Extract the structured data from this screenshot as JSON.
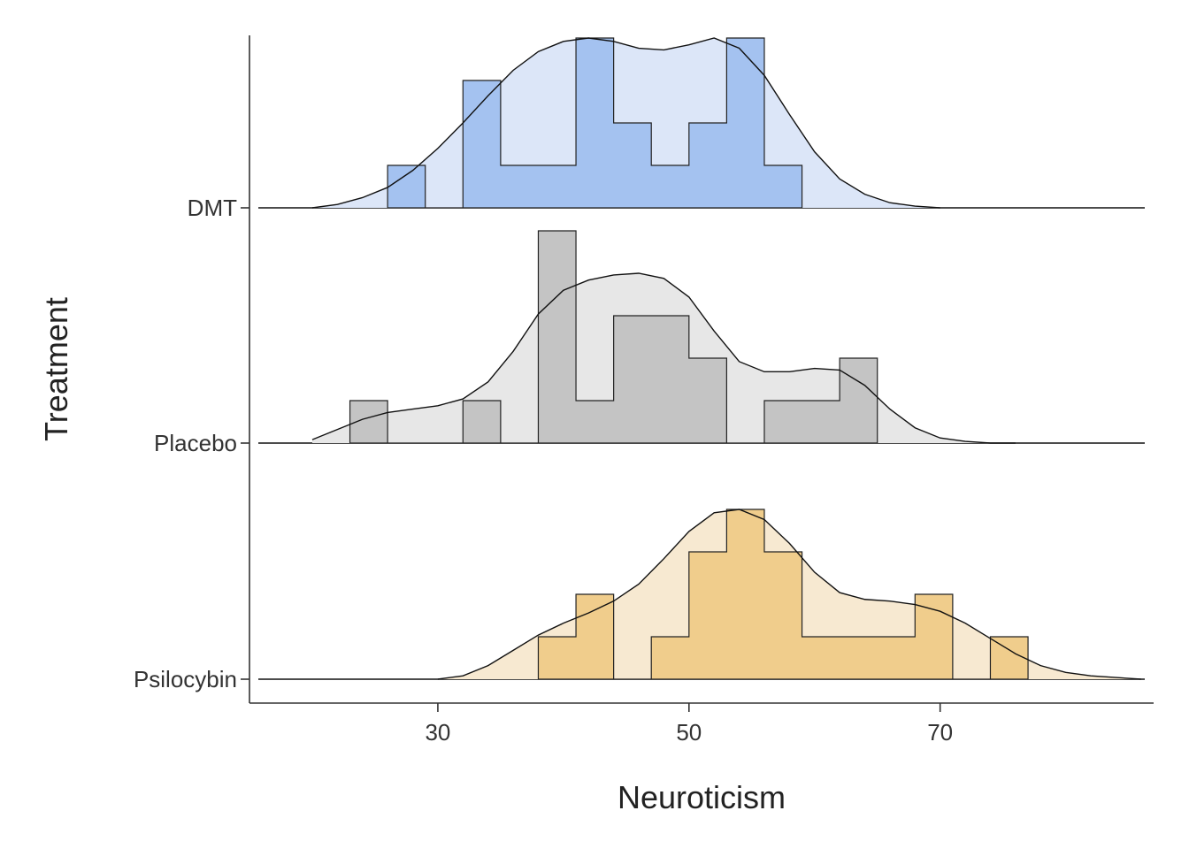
{
  "chart_data": {
    "type": "ridgeline-histogram-density",
    "xlabel": "Neuroticism",
    "ylabel": "Treatment",
    "x_ticks": [
      30,
      50,
      70
    ],
    "xlim": [
      15,
      87
    ],
    "bin_width": 3,
    "grid": false,
    "legend": "none",
    "series": [
      {
        "name": "DMT",
        "fill_hist": "#a4c2f0",
        "fill_density": "#dce6f8",
        "bins": [
          {
            "start": 26,
            "count": 1
          },
          {
            "start": 29,
            "count": 0
          },
          {
            "start": 32,
            "count": 3
          },
          {
            "start": 35,
            "count": 1
          },
          {
            "start": 38,
            "count": 1
          },
          {
            "start": 41,
            "count": 4
          },
          {
            "start": 44,
            "count": 2
          },
          {
            "start": 47,
            "count": 1
          },
          {
            "start": 50,
            "count": 2
          },
          {
            "start": 53,
            "count": 4
          },
          {
            "start": 56,
            "count": 1
          }
        ],
        "density": {
          "x": [
            20,
            22,
            24,
            26,
            28,
            30,
            32,
            34,
            36,
            38,
            40,
            42,
            44,
            46,
            48,
            50,
            52,
            54,
            56,
            58,
            60,
            62,
            64,
            66,
            68,
            70
          ],
          "y": [
            0.0,
            0.02,
            0.06,
            0.12,
            0.22,
            0.35,
            0.5,
            0.66,
            0.81,
            0.92,
            0.98,
            1.0,
            0.98,
            0.94,
            0.93,
            0.96,
            1.0,
            0.94,
            0.78,
            0.55,
            0.33,
            0.17,
            0.08,
            0.03,
            0.01,
            0.0
          ]
        }
      },
      {
        "name": "Placebo",
        "fill_hist": "#c4c4c4",
        "fill_density": "#e7e7e7",
        "bins": [
          {
            "start": 23,
            "count": 1
          },
          {
            "start": 26,
            "count": 0
          },
          {
            "start": 29,
            "count": 0
          },
          {
            "start": 32,
            "count": 1
          },
          {
            "start": 35,
            "count": 0
          },
          {
            "start": 38,
            "count": 5
          },
          {
            "start": 41,
            "count": 1
          },
          {
            "start": 44,
            "count": 3
          },
          {
            "start": 47,
            "count": 3
          },
          {
            "start": 50,
            "count": 2
          },
          {
            "start": 53,
            "count": 0
          },
          {
            "start": 56,
            "count": 1
          },
          {
            "start": 59,
            "count": 1
          },
          {
            "start": 62,
            "count": 2
          }
        ],
        "density": {
          "x": [
            20,
            22,
            24,
            26,
            28,
            30,
            32,
            34,
            36,
            38,
            40,
            42,
            44,
            46,
            48,
            50,
            52,
            54,
            56,
            58,
            60,
            62,
            64,
            66,
            68,
            70,
            72,
            74,
            76
          ],
          "y": [
            0.02,
            0.08,
            0.14,
            0.18,
            0.2,
            0.22,
            0.26,
            0.36,
            0.54,
            0.76,
            0.9,
            0.96,
            0.99,
            1.0,
            0.97,
            0.86,
            0.66,
            0.48,
            0.42,
            0.42,
            0.44,
            0.43,
            0.34,
            0.2,
            0.09,
            0.03,
            0.01,
            0.0,
            0.0
          ]
        }
      },
      {
        "name": "Psilocybin",
        "fill_hist": "#f0cd8c",
        "fill_density": "#f7e9d1",
        "bins": [
          {
            "start": 38,
            "count": 1
          },
          {
            "start": 41,
            "count": 2
          },
          {
            "start": 44,
            "count": 0
          },
          {
            "start": 47,
            "count": 1
          },
          {
            "start": 50,
            "count": 3
          },
          {
            "start": 53,
            "count": 4
          },
          {
            "start": 56,
            "count": 3
          },
          {
            "start": 59,
            "count": 1
          },
          {
            "start": 62,
            "count": 1
          },
          {
            "start": 65,
            "count": 1
          },
          {
            "start": 68,
            "count": 2
          },
          {
            "start": 71,
            "count": 0
          },
          {
            "start": 74,
            "count": 1
          }
        ],
        "density": {
          "x": [
            30,
            32,
            34,
            36,
            38,
            40,
            42,
            44,
            46,
            48,
            50,
            52,
            54,
            56,
            58,
            60,
            62,
            64,
            66,
            68,
            70,
            72,
            74,
            76,
            78,
            80,
            82,
            84,
            86
          ],
          "y": [
            0.0,
            0.02,
            0.08,
            0.17,
            0.26,
            0.33,
            0.39,
            0.46,
            0.56,
            0.71,
            0.87,
            0.98,
            1.0,
            0.94,
            0.8,
            0.63,
            0.51,
            0.47,
            0.46,
            0.44,
            0.4,
            0.33,
            0.24,
            0.15,
            0.08,
            0.04,
            0.02,
            0.01,
            0.0
          ]
        }
      }
    ]
  }
}
